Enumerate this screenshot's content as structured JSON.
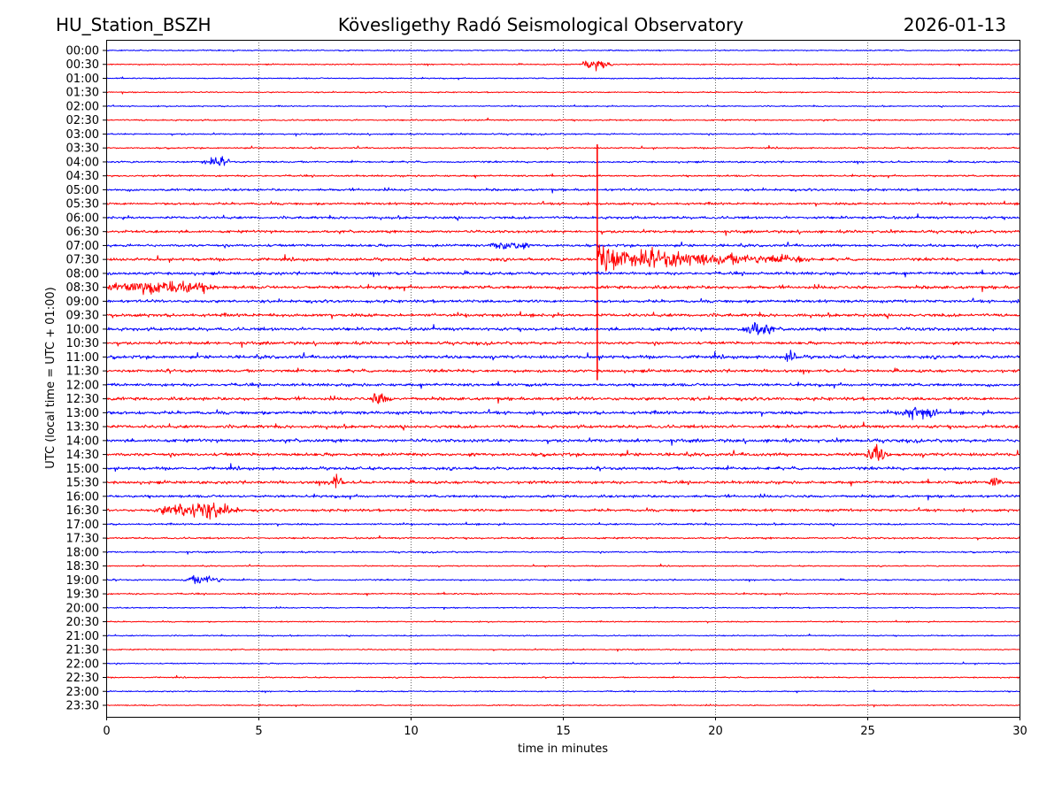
{
  "chart_data": {
    "type": "line",
    "title_left": "HU_Station_BSZH",
    "title_center": "Kövesligethy Radó Seismological Observatory",
    "title_right": "2026-01-13",
    "xlabel": "time in minutes",
    "ylabel": "UTC (local time = UTC + 01:00)",
    "xlim": [
      0,
      30
    ],
    "xticks": [
      "0",
      "5",
      "10",
      "15",
      "20",
      "25",
      "30"
    ],
    "xtick_values": [
      0,
      5,
      10,
      15,
      20,
      25,
      30
    ],
    "grid": "vertical dotted at 5-minute intervals",
    "row_labels": [
      "00:00",
      "00:30",
      "01:00",
      "01:30",
      "02:00",
      "02:30",
      "03:00",
      "03:30",
      "04:00",
      "04:30",
      "05:00",
      "05:30",
      "06:00",
      "06:30",
      "07:00",
      "07:30",
      "08:00",
      "08:30",
      "09:00",
      "09:30",
      "10:00",
      "10:30",
      "11:00",
      "11:30",
      "12:00",
      "12:30",
      "13:00",
      "13:30",
      "14:00",
      "14:30",
      "15:00",
      "15:30",
      "16:00",
      "16:30",
      "17:00",
      "17:30",
      "18:00",
      "18:30",
      "19:00",
      "19:30",
      "20:00",
      "20:30",
      "21:00",
      "21:30",
      "22:00",
      "22:30",
      "23:00",
      "23:30"
    ],
    "series_colors": [
      "#0000ff",
      "#ff0000"
    ],
    "noise_level": [
      0.4,
      0.4,
      0.4,
      0.4,
      0.4,
      0.5,
      0.5,
      0.5,
      0.6,
      0.6,
      0.8,
      0.8,
      0.9,
      0.9,
      0.9,
      1.0,
      1.0,
      1.1,
      1.0,
      1.1,
      1.1,
      1.0,
      1.1,
      1.0,
      1.0,
      1.1,
      1.1,
      1.1,
      1.1,
      1.1,
      1.0,
      1.0,
      0.9,
      0.9,
      0.6,
      0.6,
      0.5,
      0.4,
      0.5,
      0.5,
      0.4,
      0.4,
      0.4,
      0.4,
      0.4,
      0.4,
      0.4,
      0.4
    ],
    "events": [
      {
        "row": "00:30",
        "minute": 16.1,
        "amplitude": 4,
        "duration": 1.2
      },
      {
        "row": "04:00",
        "minute": 3.6,
        "amplitude": 3,
        "duration": 1.2
      },
      {
        "row": "07:00",
        "minute": 13.2,
        "amplitude": 3,
        "duration": 1.5
      },
      {
        "row": "07:30",
        "minute": 16.1,
        "amplitude": 130,
        "duration": 7.0,
        "main_earthquake": true
      },
      {
        "row": "08:30",
        "minute": 1.8,
        "amplitude": 5,
        "duration": 4
      },
      {
        "row": "10:00",
        "minute": 21.4,
        "amplitude": 5,
        "duration": 1.2
      },
      {
        "row": "11:00",
        "minute": 22.5,
        "amplitude": 4,
        "duration": 0.5
      },
      {
        "row": "12:30",
        "minute": 9.0,
        "amplitude": 4,
        "duration": 0.8
      },
      {
        "row": "13:00",
        "minute": 26.7,
        "amplitude": 4,
        "duration": 1.5
      },
      {
        "row": "14:30",
        "minute": 25.3,
        "amplitude": 6,
        "duration": 0.8
      },
      {
        "row": "15:30",
        "minute": 7.5,
        "amplitude": 6,
        "duration": 0.6
      },
      {
        "row": "15:30",
        "minute": 29.2,
        "amplitude": 5,
        "duration": 0.5
      },
      {
        "row": "16:30",
        "minute": 3.0,
        "amplitude": 6,
        "duration": 3
      },
      {
        "row": "19:00",
        "minute": 3.2,
        "amplitude": 3,
        "duration": 1.5
      }
    ]
  }
}
